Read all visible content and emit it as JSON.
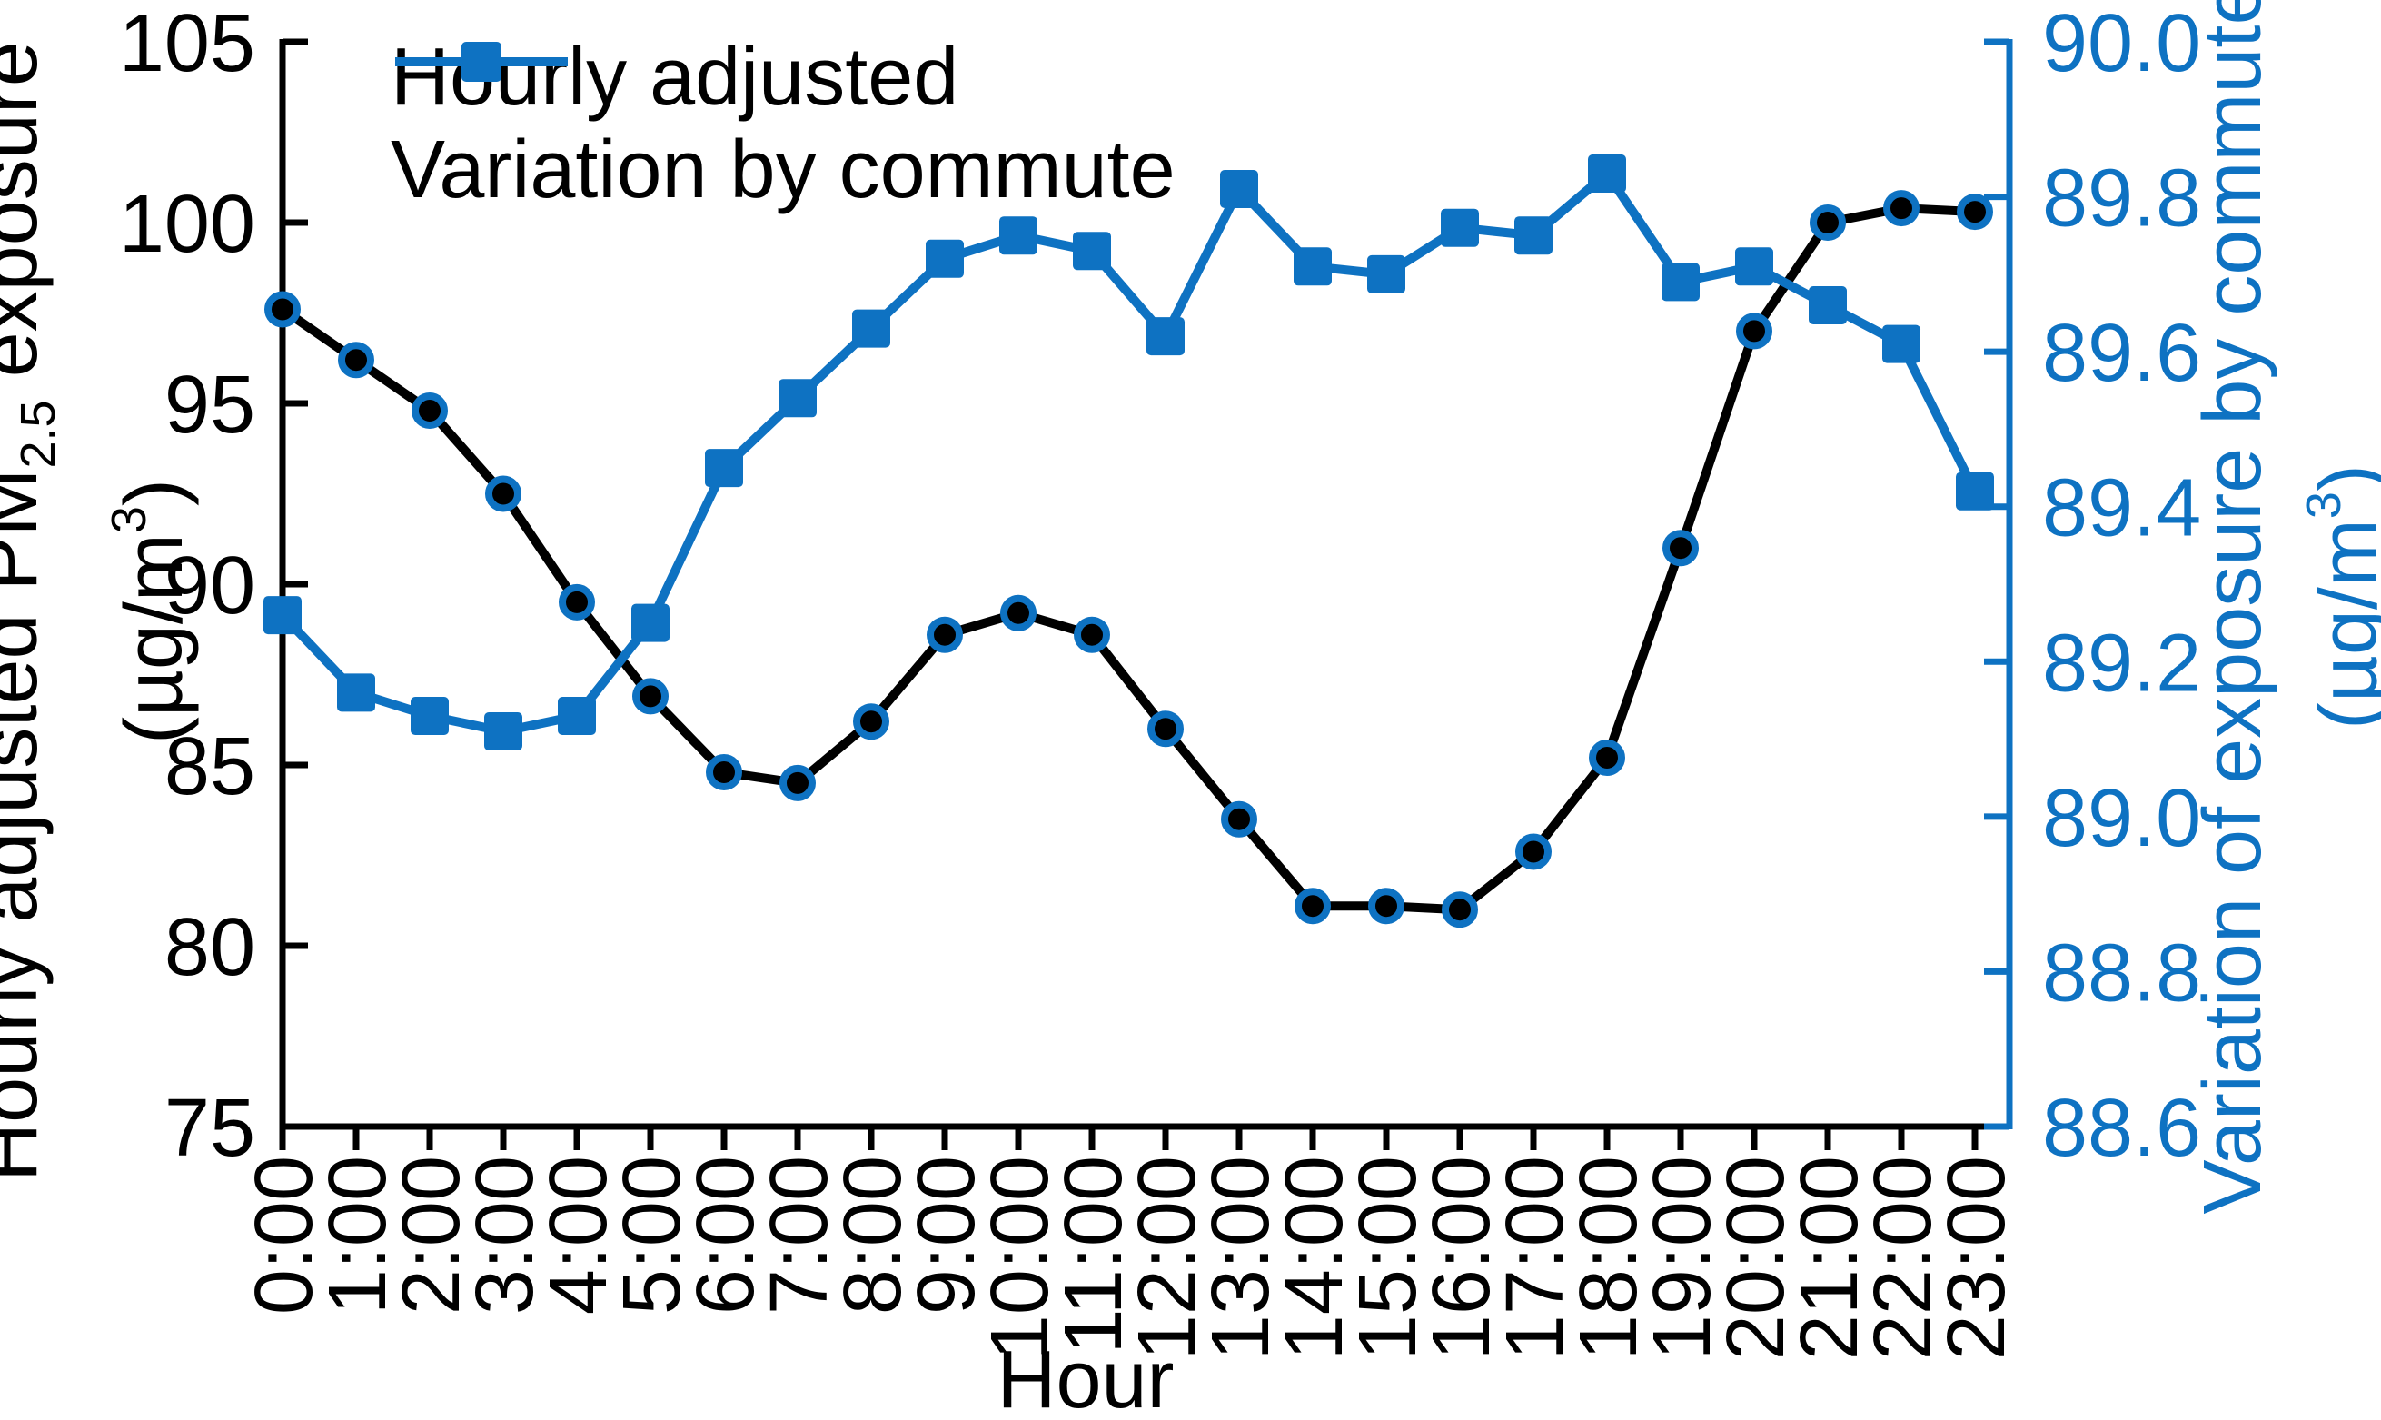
{
  "figure": {
    "type": "dual-axis line chart",
    "background": "#FFFFFF"
  },
  "legend": {
    "items": [
      {
        "label": "Hourly adjusted"
      },
      {
        "label": "Variation by commute"
      }
    ]
  },
  "axes": {
    "x": {
      "title": "Hour"
    },
    "left": {
      "title_main1": "Hourly adjusted PM",
      "title_sub": "2.5",
      "title_main2": " exposure",
      "unit_pre": "(µg/m",
      "unit_sup": "3",
      "unit_post": ")",
      "tick_labels": [
        "75",
        "80",
        "85",
        "90",
        "95",
        "100",
        "105"
      ],
      "color": "#000000"
    },
    "right": {
      "title_main": "Variation of exposure by commute",
      "unit_pre": "(µg/m",
      "unit_sup": "3",
      "unit_post": ")",
      "tick_labels": [
        "88.6",
        "88.8",
        "89.0",
        "89.2",
        "89.4",
        "89.6",
        "89.8",
        "90.0"
      ],
      "color": "#0E72C2"
    }
  },
  "chart_data": {
    "type": "line",
    "x": [
      "0:00",
      "1:00",
      "2:00",
      "3:00",
      "4:00",
      "5:00",
      "6:00",
      "7:00",
      "8:00",
      "9:00",
      "10:00",
      "11:00",
      "12:00",
      "13:00",
      "14:00",
      "15:00",
      "16:00",
      "17:00",
      "18:00",
      "19:00",
      "20:00",
      "21:00",
      "22:00",
      "23:00"
    ],
    "xlabel": "Hour",
    "left_axis_label": "Hourly adjusted PM2.5 exposure (µg/m3)",
    "right_axis_label": "Variation of exposure by commute (µg/m3)",
    "left_ylim": [
      75,
      105
    ],
    "right_ylim": [
      88.6,
      90.0
    ],
    "left_ticks": [
      75,
      80,
      85,
      90,
      95,
      100,
      105
    ],
    "right_ticks": [
      88.6,
      88.8,
      89.0,
      89.2,
      89.4,
      89.6,
      89.8,
      90.0
    ],
    "grid": false,
    "legend_position": "top-left-inside",
    "series": [
      {
        "name": "Hourly adjusted",
        "axis": "left",
        "color": "#000000",
        "marker": "circle",
        "marker_fill": "#000000",
        "marker_edge": "#0E72C2",
        "values": [
          97.6,
          96.2,
          94.8,
          92.5,
          89.5,
          86.9,
          84.8,
          84.5,
          86.2,
          88.6,
          89.2,
          88.6,
          86.0,
          83.5,
          81.1,
          81.1,
          81.0,
          82.6,
          85.2,
          91.0,
          97.0,
          100.0,
          100.4,
          100.3
        ]
      },
      {
        "name": "Variation by commute",
        "axis": "right",
        "color": "#0E72C2",
        "marker": "square",
        "marker_fill": "#0E72C2",
        "marker_edge": "#0E72C2",
        "values": [
          89.26,
          89.16,
          89.13,
          89.11,
          89.13,
          89.25,
          89.45,
          89.54,
          89.63,
          89.72,
          89.75,
          89.73,
          89.62,
          89.81,
          89.71,
          89.7,
          89.76,
          89.75,
          89.83,
          89.69,
          89.71,
          89.66,
          89.61,
          89.42
        ]
      }
    ]
  }
}
